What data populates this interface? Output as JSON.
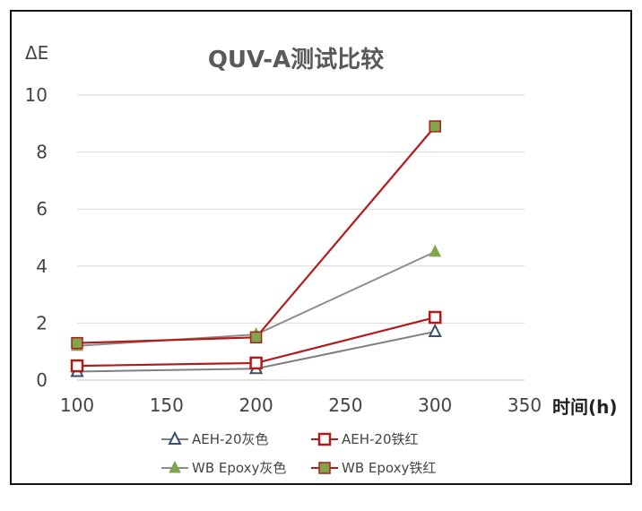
{
  "chart_data": {
    "type": "line",
    "title": "QUV-A测试比较",
    "ylabel": "ΔE",
    "xlabel": "时间(h)",
    "xlim": [
      100,
      350
    ],
    "ylim": [
      0,
      10
    ],
    "x_ticks": [
      "100",
      "150",
      "200",
      "250",
      "300",
      "350"
    ],
    "y_ticks": [
      "0",
      "2",
      "4",
      "6",
      "8",
      "10"
    ],
    "x": [
      100,
      200,
      300
    ],
    "grid": true,
    "legend_position": "bottom",
    "series": [
      {
        "name": "AEH-20灰色",
        "values": [
          0.3,
          0.4,
          1.7
        ],
        "color": "#7f7f7f",
        "marker": "open-triangle",
        "marker_color": "#3b4e6e"
      },
      {
        "name": "AEH-20铁红",
        "values": [
          0.5,
          0.6,
          2.2
        ],
        "color": "#b01c1c",
        "marker": "open-square",
        "marker_color": "#b01c1c"
      },
      {
        "name": "WB Epoxy灰色",
        "values": [
          1.2,
          1.6,
          4.5
        ],
        "color": "#8c8c8c",
        "marker": "filled-triangle",
        "marker_color": "#7fa64a"
      },
      {
        "name": "WB Epoxy铁红",
        "values": [
          1.3,
          1.5,
          8.9
        ],
        "color": "#b01c1c",
        "marker": "filled-square",
        "marker_color": "#7fa64a"
      }
    ]
  }
}
